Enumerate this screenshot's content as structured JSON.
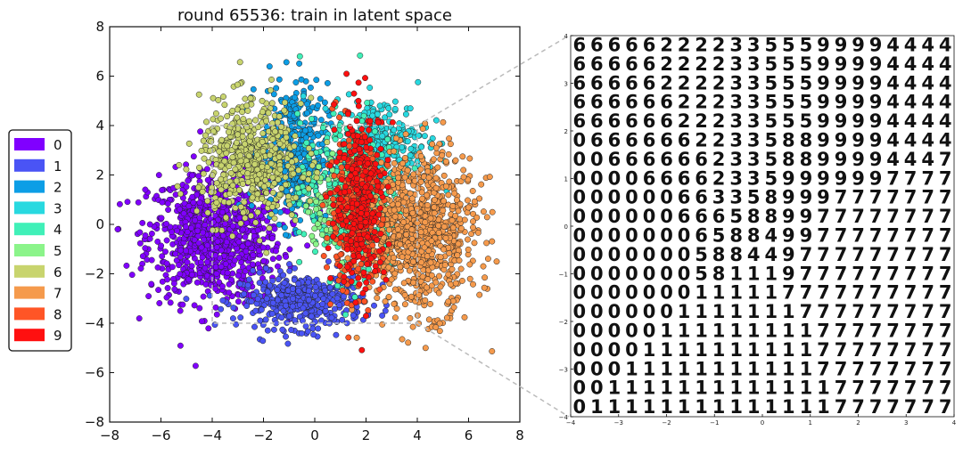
{
  "chart_data": [
    {
      "type": "scatter",
      "title": "round 65536: train in latent space",
      "xlim": [
        -8,
        8
      ],
      "ylim": [
        -8,
        8
      ],
      "x_ticks": [
        "−8",
        "−6",
        "−4",
        "−2",
        "0",
        "2",
        "4",
        "6",
        "8"
      ],
      "y_ticks": [
        "8",
        "6",
        "4",
        "2",
        "0",
        "−2",
        "−4",
        "−6",
        "−8"
      ],
      "grid": false,
      "legend_position": "left",
      "series": [
        {
          "name": "0",
          "color": "#8000ff",
          "center": [
            -3.9,
            -0.5
          ],
          "spread": [
            1.3,
            1.3
          ]
        },
        {
          "name": "1",
          "color": "#4a54f5",
          "center": [
            -0.5,
            -3.1
          ],
          "spread": [
            1.2,
            0.55
          ]
        },
        {
          "name": "2",
          "color": "#0c9ee6",
          "center": [
            -0.8,
            2.9
          ],
          "spread": [
            0.65,
            1.4
          ]
        },
        {
          "name": "3",
          "color": "#28d9e0",
          "center": [
            2.6,
            3.3
          ],
          "spread": [
            0.9,
            0.9
          ]
        },
        {
          "name": "4",
          "color": "#40f0b8",
          "center": [
            1.4,
            1.1
          ],
          "spread": [
            1.0,
            1.6
          ]
        },
        {
          "name": "5",
          "color": "#8bf48a",
          "center": [
            1.0,
            0.9
          ],
          "spread": [
            0.7,
            0.8
          ]
        },
        {
          "name": "6",
          "color": "#c8d46e",
          "center": [
            -2.5,
            2.6
          ],
          "spread": [
            1.0,
            1.2
          ]
        },
        {
          "name": "7",
          "color": "#f59a4c",
          "center": [
            4.1,
            -0.3
          ],
          "spread": [
            1.1,
            1.6
          ]
        },
        {
          "name": "8",
          "color": "#ff5526",
          "center": [
            1.5,
            0.4
          ],
          "spread": [
            0.55,
            1.5
          ]
        },
        {
          "name": "9",
          "color": "#ff1010",
          "center": [
            1.8,
            1.0
          ],
          "spread": [
            0.5,
            1.8
          ]
        }
      ],
      "zoom_box": {
        "x": [
          -4,
          4
        ],
        "y": [
          -4,
          4
        ]
      }
    },
    {
      "type": "heatmap",
      "content": "grid of decoded digit images over latent space",
      "xlim": [
        -4,
        4
      ],
      "ylim": [
        -4,
        4
      ],
      "x_ticks": [
        "−4",
        "−3",
        "−2",
        "−1",
        "0",
        "1",
        "2",
        "3",
        "4"
      ],
      "y_ticks": [
        "4",
        "3",
        "2",
        "1",
        "0",
        "−1",
        "−2",
        "−3",
        "−4"
      ],
      "cell_rows": [
        "6666622223355599994444",
        "6666622223355599994444",
        "6666622223355599994444",
        "6666662223355599994444",
        "6666662223355599994444",
        "0666666223358899994444",
        "0066666623358899994447",
        "0000666623359999997777",
        "0000006633589997777777",
        "0000006665889977777777",
        "0000000658849977777777",
        "0000000588449777777777",
        "0000000581119777777777",
        "0000000111117777777777",
        "0000001111111777777777",
        "0000011111111177777777",
        "0000111111111177777777",
        "0001111111111177777777",
        "0011111111111117777777",
        "0111111111111117777777"
      ]
    }
  ],
  "legend": {
    "items": [
      {
        "label": "0",
        "color": "#8000ff"
      },
      {
        "label": "1",
        "color": "#4a54f5"
      },
      {
        "label": "2",
        "color": "#0c9ee6"
      },
      {
        "label": "3",
        "color": "#28d9e0"
      },
      {
        "label": "4",
        "color": "#40f0b8"
      },
      {
        "label": "5",
        "color": "#8bf48a"
      },
      {
        "label": "6",
        "color": "#c8d46e"
      },
      {
        "label": "7",
        "color": "#f59a4c"
      },
      {
        "label": "8",
        "color": "#ff5526"
      },
      {
        "label": "9",
        "color": "#ff1010"
      }
    ]
  }
}
